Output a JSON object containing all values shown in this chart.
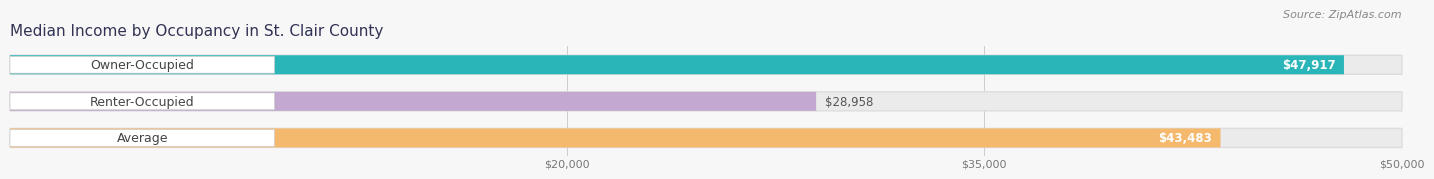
{
  "title": "Median Income by Occupancy in St. Clair County",
  "source": "Source: ZipAtlas.com",
  "categories": [
    "Owner-Occupied",
    "Renter-Occupied",
    "Average"
  ],
  "values": [
    47917,
    28958,
    43483
  ],
  "bar_colors": [
    "#2ab5b8",
    "#c3a8d1",
    "#f5b96e"
  ],
  "bar_bg_colors": [
    "#eeeeee",
    "#eeeeee",
    "#eeeeee"
  ],
  "label_inside": [
    true,
    false,
    true
  ],
  "value_labels": [
    "$47,917",
    "$28,958",
    "$43,483"
  ],
  "xlim_data": [
    0,
    50000
  ],
  "xticks": [
    20000,
    35000,
    50000
  ],
  "xtick_labels": [
    "$20,000",
    "$35,000",
    "$50,000"
  ],
  "title_fontsize": 11,
  "source_fontsize": 8,
  "bar_label_fontsize": 9,
  "value_label_fontsize": 8.5,
  "title_color": "#333355",
  "source_color": "#888888",
  "label_text_color": "#444444",
  "bar_height": 0.52,
  "background_color": "#f7f7f7"
}
